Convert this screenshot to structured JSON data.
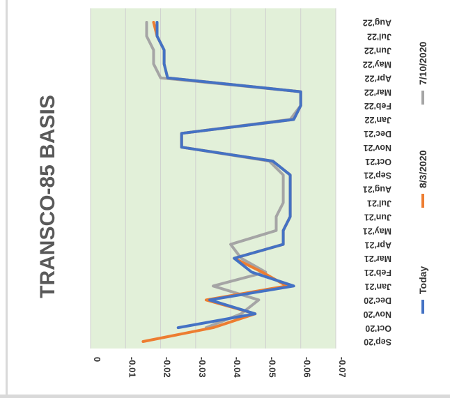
{
  "chart_data": {
    "type": "line",
    "title": "TRANSCO-85 BASIS",
    "xlabel": "",
    "ylabel": "",
    "orientation": "rotated-90-clockwise",
    "grid": true,
    "legend_position": "right",
    "plot_background": "#e2f0d9",
    "ylim": [
      -0.07,
      0
    ],
    "y_ticks": [
      0,
      -0.01,
      -0.02,
      -0.03,
      -0.04,
      -0.05,
      -0.06,
      -0.07
    ],
    "y_tick_labels": [
      "0",
      "-0.01",
      "-0.02",
      "-0.03",
      "-0.04",
      "-0.05",
      "-0.06",
      "-0.07"
    ],
    "categories": [
      "Sep'20",
      "Oct'20",
      "Nov'20",
      "Dec'20",
      "Jan'21",
      "Feb'21",
      "Mar'21",
      "Apr'21",
      "May'21",
      "Jun'21",
      "Jul'21",
      "Aug'21",
      "Sep'21",
      "Oct'21",
      "Nov'21",
      "Dec'21",
      "Jan'22",
      "Feb'22",
      "Mar'22",
      "Apr'22",
      "May'22",
      "Jun'22",
      "Jul'22",
      "Aug'22"
    ],
    "series": [
      {
        "name": "Today",
        "color": "#4472c4",
        "values": [
          null,
          -0.025,
          -0.047,
          -0.034,
          -0.058,
          -0.046,
          -0.041,
          -0.055,
          -0.055,
          -0.057,
          -0.057,
          -0.057,
          -0.057,
          -0.052,
          -0.026,
          -0.026,
          -0.058,
          -0.06,
          -0.06,
          -0.022,
          -0.021,
          -0.021,
          -0.019,
          -0.019
        ]
      },
      {
        "name": "8/3/2020",
        "color": "#ed7d31",
        "values": [
          -0.015,
          -0.035,
          -0.047,
          -0.033,
          -0.056,
          -0.049,
          -0.041,
          -0.055,
          -0.055,
          -0.057,
          -0.057,
          -0.057,
          -0.057,
          -0.052,
          -0.026,
          -0.026,
          -0.058,
          -0.06,
          -0.06,
          -0.022,
          -0.021,
          -0.021,
          -0.019,
          -0.018
        ]
      },
      {
        "name": "7/10/2020",
        "color": "#a5a5a5",
        "values": [
          null,
          -0.033,
          -0.043,
          -0.048,
          -0.035,
          -0.05,
          -0.043,
          -0.04,
          -0.053,
          -0.053,
          -0.055,
          -0.055,
          -0.055,
          -0.051,
          -0.026,
          -0.026,
          -0.057,
          -0.06,
          -0.06,
          -0.02,
          -0.018,
          -0.018,
          -0.016,
          -0.016
        ]
      }
    ]
  }
}
